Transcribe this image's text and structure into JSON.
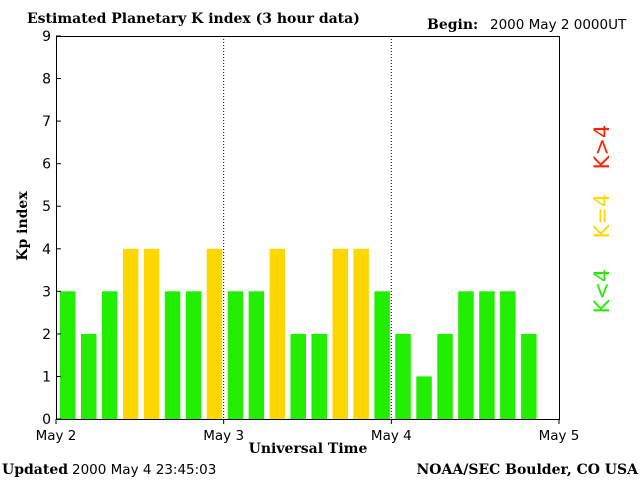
{
  "header": {
    "title": "Estimated Planetary K index (3 hour data)",
    "begin_label": "Begin:",
    "begin_value": "2000 May 2 0000UT"
  },
  "footer": {
    "updated_label": "Updated",
    "updated_value": "2000 May  4 23:45:03",
    "source": "NOAA/SEC Boulder, CO USA"
  },
  "legend": {
    "high": "K>4",
    "equal": "K=4",
    "low": "K<4"
  },
  "colors": {
    "low": "#22ee00",
    "equal": "#ffd700",
    "high": "#ff2200",
    "axis": "#000000"
  },
  "chart_data": {
    "type": "bar",
    "title": "Estimated Planetary K index (3 hour data)",
    "xlabel": "Universal Time",
    "ylabel": "Kp index",
    "ylim": [
      0,
      9
    ],
    "yticks": [
      "0",
      "1",
      "2",
      "3",
      "4",
      "5",
      "6",
      "7",
      "8",
      "9"
    ],
    "xticks": [
      "May 2",
      "May 3",
      "May 4",
      "May 5"
    ],
    "day_slots": 8,
    "values": [
      3,
      2,
      3,
      4,
      4,
      3,
      3,
      4,
      3,
      3,
      4,
      2,
      2,
      4,
      4,
      3,
      2,
      1,
      2,
      3,
      3,
      3,
      2
    ],
    "grid": false
  }
}
